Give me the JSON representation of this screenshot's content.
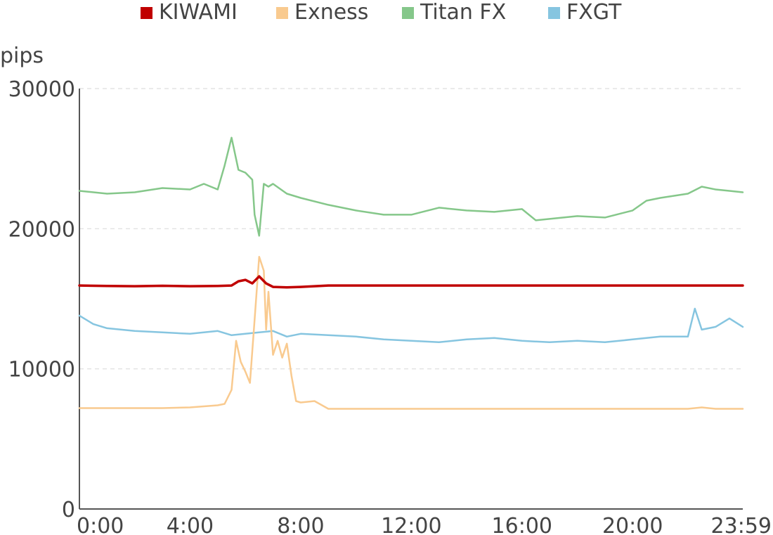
{
  "chart_data": {
    "type": "line",
    "ylabel": "pips",
    "xlabel": "",
    "ylim": [
      0,
      30000
    ],
    "yticks": [
      0,
      10000,
      20000,
      30000
    ],
    "xlim": [
      "0:00",
      "23:59"
    ],
    "xticks": [
      "0:00",
      "4:00",
      "8:00",
      "12:00",
      "16:00",
      "20:00",
      "23:59"
    ],
    "grid": "horizontal dashed",
    "legend": "top",
    "series": [
      {
        "name": "KIWAMI",
        "color": "#c00000",
        "x": [
          "0:00",
          "1:00",
          "2:00",
          "3:00",
          "4:00",
          "5:00",
          "5:30",
          "5:45",
          "6:00",
          "6:15",
          "6:30",
          "6:45",
          "7:00",
          "7:30",
          "8:00",
          "9:00",
          "10:00",
          "11:00",
          "12:00",
          "13:00",
          "14:00",
          "15:00",
          "16:00",
          "17:00",
          "18:00",
          "19:00",
          "20:00",
          "21:00",
          "22:00",
          "23:00",
          "23:59"
        ],
        "values": [
          15950,
          15920,
          15900,
          15930,
          15900,
          15920,
          15950,
          16250,
          16350,
          16100,
          16600,
          16100,
          15850,
          15820,
          15850,
          15950,
          15950,
          15950,
          15950,
          15950,
          15950,
          15950,
          15950,
          15950,
          15950,
          15950,
          15950,
          15950,
          15950,
          15950,
          15950
        ]
      },
      {
        "name": "Exness",
        "color": "#f9ca8f",
        "x": [
          "0:00",
          "1:00",
          "2:00",
          "3:00",
          "4:00",
          "5:00",
          "5:15",
          "5:30",
          "5:40",
          "5:50",
          "6:00",
          "6:10",
          "6:20",
          "6:30",
          "6:40",
          "6:45",
          "6:50",
          "7:00",
          "7:10",
          "7:20",
          "7:30",
          "7:40",
          "7:50",
          "8:00",
          "8:30",
          "9:00",
          "10:00",
          "12:00",
          "14:00",
          "16:00",
          "18:00",
          "20:00",
          "22:00",
          "22:30",
          "23:00",
          "23:59"
        ],
        "values": [
          7200,
          7200,
          7200,
          7200,
          7250,
          7400,
          7500,
          8500,
          12000,
          10500,
          9800,
          9000,
          13500,
          18000,
          17000,
          12800,
          15500,
          11000,
          12000,
          10800,
          11800,
          9500,
          7700,
          7600,
          7700,
          7150,
          7150,
          7150,
          7150,
          7150,
          7150,
          7150,
          7150,
          7250,
          7150,
          7150
        ]
      },
      {
        "name": "Titan FX",
        "color": "#85c78a",
        "x": [
          "0:00",
          "1:00",
          "2:00",
          "3:00",
          "4:00",
          "4:30",
          "5:00",
          "5:15",
          "5:30",
          "5:45",
          "6:00",
          "6:15",
          "6:20",
          "6:30",
          "6:40",
          "6:50",
          "7:00",
          "7:30",
          "8:00",
          "9:00",
          "10:00",
          "11:00",
          "12:00",
          "13:00",
          "14:00",
          "15:00",
          "16:00",
          "16:30",
          "17:00",
          "18:00",
          "19:00",
          "20:00",
          "20:30",
          "21:00",
          "22:00",
          "22:30",
          "23:00",
          "23:30",
          "23:59"
        ],
        "values": [
          22700,
          22500,
          22600,
          22900,
          22800,
          23200,
          22800,
          24500,
          26500,
          24200,
          24000,
          23500,
          21000,
          19500,
          23200,
          23000,
          23200,
          22500,
          22200,
          21700,
          21300,
          21000,
          21000,
          21500,
          21300,
          21200,
          21400,
          20600,
          20700,
          20900,
          20800,
          21300,
          22000,
          22200,
          22500,
          23000,
          22800,
          22700,
          22600
        ]
      },
      {
        "name": "FXGT",
        "color": "#86c5e0",
        "x": [
          "0:00",
          "0:30",
          "1:00",
          "2:00",
          "3:00",
          "4:00",
          "5:00",
          "5:30",
          "6:00",
          "6:30",
          "7:00",
          "7:30",
          "8:00",
          "9:00",
          "10:00",
          "11:00",
          "12:00",
          "13:00",
          "14:00",
          "15:00",
          "16:00",
          "17:00",
          "18:00",
          "19:00",
          "20:00",
          "21:00",
          "22:00",
          "22:15",
          "22:30",
          "23:00",
          "23:30",
          "23:59"
        ],
        "values": [
          13800,
          13200,
          12900,
          12700,
          12600,
          12500,
          12700,
          12400,
          12500,
          12600,
          12700,
          12300,
          12500,
          12400,
          12300,
          12100,
          12000,
          11900,
          12100,
          12200,
          12000,
          11900,
          12000,
          11900,
          12100,
          12300,
          12300,
          14300,
          12800,
          13000,
          13600,
          13000
        ]
      }
    ]
  }
}
